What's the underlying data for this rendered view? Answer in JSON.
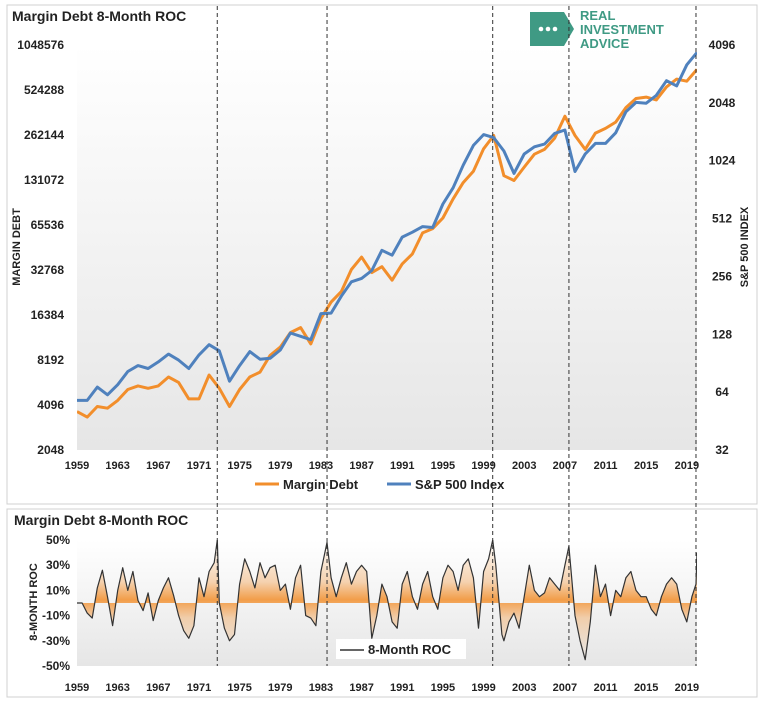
{
  "brand": {
    "lines": [
      "REAL",
      "INVESTMENT",
      "ADVICE"
    ],
    "color": "#3f9a84"
  },
  "chart_data": [
    {
      "type": "line",
      "title": "Margin Debt 8-Month ROC",
      "ylabel": "MARGIN DEBT",
      "y2label": "S&P 500 INDEX",
      "y_scale": "log2",
      "ylim": [
        2048,
        1048576
      ],
      "y2lim": [
        32,
        4096
      ],
      "xlim": [
        1959,
        2020
      ],
      "x_ticks": [
        1959,
        1963,
        1967,
        1971,
        1975,
        1979,
        1983,
        1987,
        1991,
        1995,
        1999,
        2003,
        2007,
        2011,
        2015,
        2019
      ],
      "y_ticks": [
        2048,
        4096,
        8192,
        16384,
        32768,
        65536,
        131072,
        262144,
        524288,
        1048576
      ],
      "y2_ticks": [
        32,
        64,
        128,
        256,
        512,
        1024,
        2048,
        4096
      ],
      "legend_position": "bottom",
      "grid": false,
      "vlines": [
        1972.8,
        1983.6,
        1999.9,
        2007.4,
        2019.9
      ],
      "series": [
        {
          "name": "Margin Debt",
          "axis": "left",
          "color": "#f28e2b",
          "points": [
            [
              1959,
              3700
            ],
            [
              1960,
              3400
            ],
            [
              1961,
              4000
            ],
            [
              1962,
              3900
            ],
            [
              1963,
              4400
            ],
            [
              1964,
              5200
            ],
            [
              1965,
              5500
            ],
            [
              1966,
              5300
            ],
            [
              1967,
              5500
            ],
            [
              1968,
              6300
            ],
            [
              1969,
              5800
            ],
            [
              1970,
              4500
            ],
            [
              1971,
              4500
            ],
            [
              1972,
              6500
            ],
            [
              1973,
              5300
            ],
            [
              1974,
              4000
            ],
            [
              1975,
              5200
            ],
            [
              1976,
              6300
            ],
            [
              1977,
              6800
            ],
            [
              1978,
              8800
            ],
            [
              1979,
              10000
            ],
            [
              1980,
              12500
            ],
            [
              1981,
              13500
            ],
            [
              1982,
              10500
            ],
            [
              1983,
              15500
            ],
            [
              1984,
              20000
            ],
            [
              1985,
              23500
            ],
            [
              1986,
              33000
            ],
            [
              1987,
              40000
            ],
            [
              1988,
              31500
            ],
            [
              1989,
              34500
            ],
            [
              1990,
              28000
            ],
            [
              1991,
              36000
            ],
            [
              1992,
              42000
            ],
            [
              1993,
              58000
            ],
            [
              1994,
              62000
            ],
            [
              1995,
              73000
            ],
            [
              1996,
              98000
            ],
            [
              1997,
              126000
            ],
            [
              1998,
              150000
            ],
            [
              1999,
              212000
            ],
            [
              2000,
              260000
            ],
            [
              2001,
              140000
            ],
            [
              2002,
              130000
            ],
            [
              2003,
              160000
            ],
            [
              2004,
              195000
            ],
            [
              2005,
              210000
            ],
            [
              2006,
              250000
            ],
            [
              2007,
              350000
            ],
            [
              2008,
              260000
            ],
            [
              2009,
              210000
            ],
            [
              2010,
              270000
            ],
            [
              2011,
              290000
            ],
            [
              2012,
              320000
            ],
            [
              2013,
              400000
            ],
            [
              2014,
              460000
            ],
            [
              2015,
              470000
            ],
            [
              2016,
              450000
            ],
            [
              2017,
              550000
            ],
            [
              2018,
              620000
            ],
            [
              2019,
              600000
            ],
            [
              2020,
              720000
            ]
          ]
        },
        {
          "name": "S&P 500 Index",
          "axis": "right",
          "color": "#4f81bd",
          "points": [
            [
              1959,
              58
            ],
            [
              1960,
              58
            ],
            [
              1961,
              68
            ],
            [
              1962,
              62
            ],
            [
              1963,
              70
            ],
            [
              1964,
              82
            ],
            [
              1965,
              88
            ],
            [
              1966,
              85
            ],
            [
              1967,
              92
            ],
            [
              1968,
              101
            ],
            [
              1969,
              94
            ],
            [
              1970,
              85
            ],
            [
              1971,
              100
            ],
            [
              1972,
              113
            ],
            [
              1973,
              105
            ],
            [
              1974,
              73
            ],
            [
              1975,
              88
            ],
            [
              1976,
              104
            ],
            [
              1977,
              95
            ],
            [
              1978,
              96
            ],
            [
              1979,
              106
            ],
            [
              1980,
              130
            ],
            [
              1981,
              125
            ],
            [
              1982,
              120
            ],
            [
              1983,
              164
            ],
            [
              1984,
              165
            ],
            [
              1985,
              202
            ],
            [
              1986,
              240
            ],
            [
              1987,
              250
            ],
            [
              1988,
              275
            ],
            [
              1989,
              350
            ],
            [
              1990,
              330
            ],
            [
              1991,
              410
            ],
            [
              1992,
              435
            ],
            [
              1993,
              465
            ],
            [
              1994,
              460
            ],
            [
              1995,
              610
            ],
            [
              1996,
              740
            ],
            [
              1997,
              970
            ],
            [
              1998,
              1230
            ],
            [
              1999,
              1400
            ],
            [
              2000,
              1350
            ],
            [
              2001,
              1150
            ],
            [
              2002,
              880
            ],
            [
              2003,
              1110
            ],
            [
              2004,
              1210
            ],
            [
              2005,
              1250
            ],
            [
              2006,
              1420
            ],
            [
              2007,
              1480
            ],
            [
              2008,
              900
            ],
            [
              2009,
              1110
            ],
            [
              2010,
              1260
            ],
            [
              2011,
              1260
            ],
            [
              2012,
              1430
            ],
            [
              2013,
              1840
            ],
            [
              2014,
              2060
            ],
            [
              2015,
              2040
            ],
            [
              2016,
              2240
            ],
            [
              2017,
              2670
            ],
            [
              2018,
              2510
            ],
            [
              2019,
              3230
            ],
            [
              2020,
              3750
            ]
          ]
        }
      ]
    },
    {
      "type": "area",
      "title": "Margin Debt 8-Month ROC",
      "ylabel": "8-MONTH ROC",
      "ylim": [
        -0.5,
        0.5
      ],
      "y_ticks": [
        "50%",
        "30%",
        "10%",
        "-10%",
        "-30%",
        "-50%"
      ],
      "y_tick_values": [
        0.5,
        0.3,
        0.1,
        -0.1,
        -0.3,
        -0.5
      ],
      "xlim": [
        1959,
        2020
      ],
      "x_ticks": [
        1959,
        1963,
        1967,
        1971,
        1975,
        1979,
        1983,
        1987,
        1991,
        1995,
        1999,
        2003,
        2007,
        2011,
        2015,
        2019
      ],
      "legend_position": "bottom-center",
      "vlines": [
        1972.8,
        1983.6,
        1999.9,
        2007.4,
        2019.9
      ],
      "fill_color": "#f28e2b",
      "series": [
        {
          "name": "8-Month ROC",
          "color": "#333333",
          "points": [
            [
              1959,
              0.0
            ],
            [
              1959.5,
              0.0
            ],
            [
              1960,
              -0.08
            ],
            [
              1960.5,
              -0.12
            ],
            [
              1961,
              0.12
            ],
            [
              1961.5,
              0.26
            ],
            [
              1962,
              0.05
            ],
            [
              1962.5,
              -0.18
            ],
            [
              1963,
              0.1
            ],
            [
              1963.5,
              0.28
            ],
            [
              1964,
              0.1
            ],
            [
              1964.5,
              0.25
            ],
            [
              1965,
              0.02
            ],
            [
              1965.5,
              -0.06
            ],
            [
              1966,
              0.08
            ],
            [
              1966.5,
              -0.14
            ],
            [
              1967,
              0.02
            ],
            [
              1967.5,
              0.12
            ],
            [
              1968,
              0.2
            ],
            [
              1968.5,
              0.06
            ],
            [
              1969,
              -0.1
            ],
            [
              1969.5,
              -0.22
            ],
            [
              1970,
              -0.28
            ],
            [
              1970.5,
              -0.18
            ],
            [
              1971,
              0.2
            ],
            [
              1971.5,
              0.05
            ],
            [
              1972,
              0.25
            ],
            [
              1972.5,
              0.32
            ],
            [
              1972.8,
              0.5
            ],
            [
              1973,
              0.0
            ],
            [
              1973.5,
              -0.2
            ],
            [
              1974,
              -0.3
            ],
            [
              1974.5,
              -0.25
            ],
            [
              1975,
              0.15
            ],
            [
              1975.5,
              0.35
            ],
            [
              1976,
              0.25
            ],
            [
              1976.5,
              0.12
            ],
            [
              1977,
              0.32
            ],
            [
              1977.5,
              0.2
            ],
            [
              1978,
              0.28
            ],
            [
              1978.5,
              0.3
            ],
            [
              1979,
              0.1
            ],
            [
              1979.5,
              0.15
            ],
            [
              1980,
              -0.05
            ],
            [
              1980.5,
              0.2
            ],
            [
              1981,
              0.3
            ],
            [
              1981.5,
              -0.1
            ],
            [
              1982,
              -0.12
            ],
            [
              1982.5,
              -0.18
            ],
            [
              1983,
              0.25
            ],
            [
              1983.6,
              0.48
            ],
            [
              1984,
              0.2
            ],
            [
              1984.5,
              0.05
            ],
            [
              1985,
              0.2
            ],
            [
              1985.5,
              0.32
            ],
            [
              1986,
              0.15
            ],
            [
              1986.5,
              0.25
            ],
            [
              1987,
              0.3
            ],
            [
              1987.5,
              0.25
            ],
            [
              1988,
              -0.28
            ],
            [
              1988.5,
              -0.1
            ],
            [
              1989,
              0.15
            ],
            [
              1989.5,
              0.05
            ],
            [
              1990,
              -0.15
            ],
            [
              1990.5,
              -0.2
            ],
            [
              1991,
              0.15
            ],
            [
              1991.5,
              0.25
            ],
            [
              1992,
              0.05
            ],
            [
              1992.5,
              -0.05
            ],
            [
              1993,
              0.15
            ],
            [
              1993.5,
              0.25
            ],
            [
              1994,
              0.05
            ],
            [
              1994.5,
              -0.05
            ],
            [
              1995,
              0.2
            ],
            [
              1995.5,
              0.3
            ],
            [
              1996,
              0.25
            ],
            [
              1996.5,
              0.1
            ],
            [
              1997,
              0.3
            ],
            [
              1997.5,
              0.35
            ],
            [
              1998,
              0.2
            ],
            [
              1998.5,
              -0.2
            ],
            [
              1999,
              0.25
            ],
            [
              1999.5,
              0.35
            ],
            [
              1999.9,
              0.5
            ],
            [
              2000.2,
              0.3
            ],
            [
              2000.8,
              -0.25
            ],
            [
              2001,
              -0.3
            ],
            [
              2001.5,
              -0.15
            ],
            [
              2002,
              -0.08
            ],
            [
              2002.5,
              -0.2
            ],
            [
              2003,
              0.05
            ],
            [
              2003.5,
              0.3
            ],
            [
              2004,
              0.1
            ],
            [
              2004.5,
              0.05
            ],
            [
              2005,
              0.08
            ],
            [
              2005.5,
              0.2
            ],
            [
              2006,
              0.15
            ],
            [
              2006.5,
              0.1
            ],
            [
              2007,
              0.3
            ],
            [
              2007.4,
              0.45
            ],
            [
              2008,
              -0.1
            ],
            [
              2008.5,
              -0.3
            ],
            [
              2009,
              -0.45
            ],
            [
              2009.5,
              -0.15
            ],
            [
              2010,
              0.3
            ],
            [
              2010.5,
              0.05
            ],
            [
              2011,
              0.15
            ],
            [
              2011.5,
              -0.1
            ],
            [
              2012,
              0.1
            ],
            [
              2012.5,
              0.05
            ],
            [
              2013,
              0.2
            ],
            [
              2013.5,
              0.25
            ],
            [
              2014,
              0.1
            ],
            [
              2014.5,
              0.05
            ],
            [
              2015,
              0.05
            ],
            [
              2015.5,
              -0.05
            ],
            [
              2016,
              -0.1
            ],
            [
              2016.5,
              0.05
            ],
            [
              2017,
              0.15
            ],
            [
              2017.5,
              0.2
            ],
            [
              2018,
              0.15
            ],
            [
              2018.5,
              -0.05
            ],
            [
              2019,
              -0.15
            ],
            [
              2019.5,
              0.05
            ],
            [
              2019.9,
              0.15
            ],
            [
              2020,
              0.4
            ]
          ]
        }
      ]
    }
  ]
}
